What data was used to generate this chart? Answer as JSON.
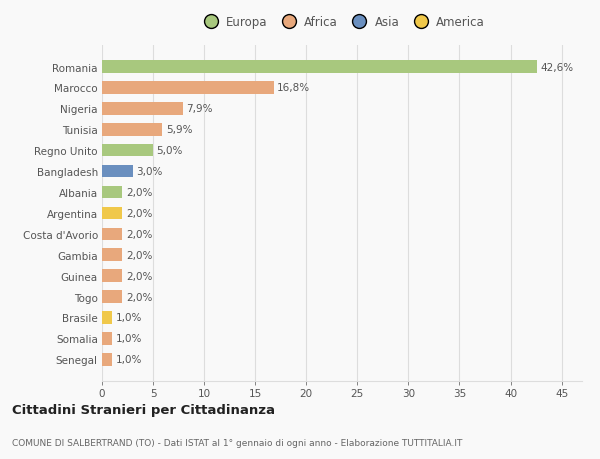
{
  "countries": [
    "Romania",
    "Marocco",
    "Nigeria",
    "Tunisia",
    "Regno Unito",
    "Bangladesh",
    "Albania",
    "Argentina",
    "Costa d'Avorio",
    "Gambia",
    "Guinea",
    "Togo",
    "Brasile",
    "Somalia",
    "Senegal"
  ],
  "values": [
    42.6,
    16.8,
    7.9,
    5.9,
    5.0,
    3.0,
    2.0,
    2.0,
    2.0,
    2.0,
    2.0,
    2.0,
    1.0,
    1.0,
    1.0
  ],
  "labels": [
    "42,6%",
    "16,8%",
    "7,9%",
    "5,9%",
    "5,0%",
    "3,0%",
    "2,0%",
    "2,0%",
    "2,0%",
    "2,0%",
    "2,0%",
    "2,0%",
    "1,0%",
    "1,0%",
    "1,0%"
  ],
  "continents": [
    "Europa",
    "Africa",
    "Africa",
    "Africa",
    "Europa",
    "Asia",
    "Europa",
    "America",
    "Africa",
    "Africa",
    "Africa",
    "Africa",
    "America",
    "Africa",
    "Africa"
  ],
  "continent_colors": {
    "Europa": "#a8c87e",
    "Africa": "#e8a87c",
    "Asia": "#6a8fbf",
    "America": "#f0c84a"
  },
  "legend_order": [
    "Europa",
    "Africa",
    "Asia",
    "America"
  ],
  "title": "Cittadini Stranieri per Cittadinanza",
  "subtitle": "COMUNE DI SALBERTRAND (TO) - Dati ISTAT al 1° gennaio di ogni anno - Elaborazione TUTTITALIA.IT",
  "xlim": [
    0,
    47
  ],
  "xticks": [
    0,
    5,
    10,
    15,
    20,
    25,
    30,
    35,
    40,
    45
  ],
  "background_color": "#f9f9f9",
  "grid_color": "#dddddd",
  "bar_height": 0.6,
  "label_fontsize": 7.5,
  "tick_fontsize": 7.5,
  "title_fontsize": 9.5,
  "subtitle_fontsize": 6.5,
  "legend_fontsize": 8.5
}
